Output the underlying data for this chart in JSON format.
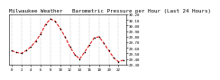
{
  "title": "Milwaukee Weather   Barometric Pressure per Hour (Last 24 Hours)",
  "y_values": [
    29.55,
    29.52,
    29.5,
    29.55,
    29.62,
    29.72,
    29.85,
    30.02,
    30.12,
    30.08,
    29.95,
    29.8,
    29.62,
    29.48,
    29.4,
    29.52,
    29.65,
    29.78,
    29.8,
    29.68,
    29.55,
    29.42,
    29.35,
    29.38
  ],
  "ylim": [
    29.3,
    30.2
  ],
  "yticks": [
    29.3,
    29.4,
    29.5,
    29.6,
    29.7,
    29.8,
    29.9,
    30.0,
    30.1,
    30.2
  ],
  "xlim": [
    -0.5,
    23.5
  ],
  "xticks": [
    0,
    2,
    4,
    6,
    8,
    10,
    12,
    14,
    16,
    18,
    20,
    22
  ],
  "line_color": "#dd0000",
  "marker_color": "#000000",
  "bg_color": "#ffffff",
  "grid_color": "#999999",
  "title_fontsize": 4.2,
  "tick_fontsize": 3.0,
  "linewidth": 0.7,
  "markersize": 1.2
}
